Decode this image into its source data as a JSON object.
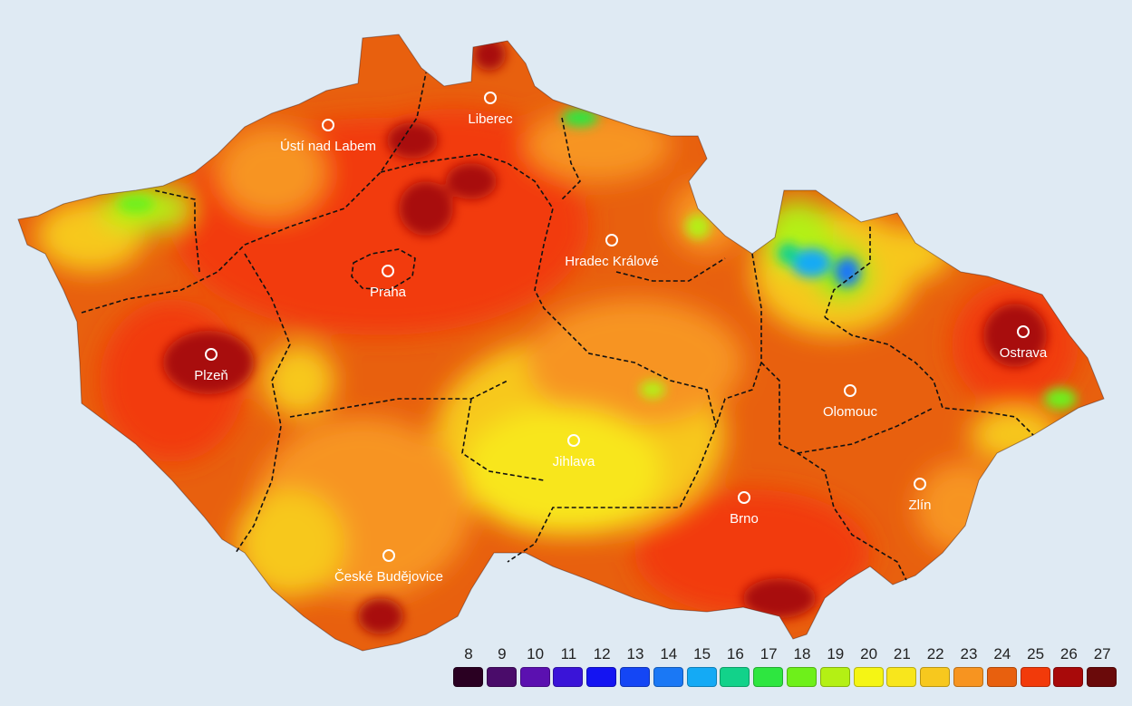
{
  "map": {
    "cities": [
      {
        "id": "usti",
        "name": "Ústí nad Labem"
      },
      {
        "id": "liberec",
        "name": "Liberec"
      },
      {
        "id": "hradec",
        "name": "Hradec Králové"
      },
      {
        "id": "praha",
        "name": "Praha"
      },
      {
        "id": "plzen",
        "name": "Plzeň"
      },
      {
        "id": "ostrava",
        "name": "Ostrava"
      },
      {
        "id": "olomouc",
        "name": "Olomouc"
      },
      {
        "id": "jihlava",
        "name": "Jihlava"
      },
      {
        "id": "zlin",
        "name": "Zlín"
      },
      {
        "id": "brno",
        "name": "Brno"
      },
      {
        "id": "ceske",
        "name": "České Budějovice"
      }
    ]
  },
  "legend": {
    "items": [
      {
        "value": "8",
        "color": "#2a0022"
      },
      {
        "value": "9",
        "color": "#4a0c6a"
      },
      {
        "value": "10",
        "color": "#5b10b0"
      },
      {
        "value": "11",
        "color": "#3a14d8"
      },
      {
        "value": "12",
        "color": "#1414f2"
      },
      {
        "value": "13",
        "color": "#1446f5"
      },
      {
        "value": "14",
        "color": "#1a78f5"
      },
      {
        "value": "15",
        "color": "#14aaf5"
      },
      {
        "value": "16",
        "color": "#12d28a"
      },
      {
        "value": "17",
        "color": "#2ee640"
      },
      {
        "value": "18",
        "color": "#6ef01a"
      },
      {
        "value": "19",
        "color": "#b4f014"
      },
      {
        "value": "20",
        "color": "#f5f514"
      },
      {
        "value": "21",
        "color": "#f8e61c"
      },
      {
        "value": "22",
        "color": "#f7c81e"
      },
      {
        "value": "23",
        "color": "#f79420"
      },
      {
        "value": "24",
        "color": "#e8600e"
      },
      {
        "value": "25",
        "color": "#f23a0a"
      },
      {
        "value": "26",
        "color": "#a80a0a"
      },
      {
        "value": "27",
        "color": "#6a0a0a"
      }
    ]
  }
}
